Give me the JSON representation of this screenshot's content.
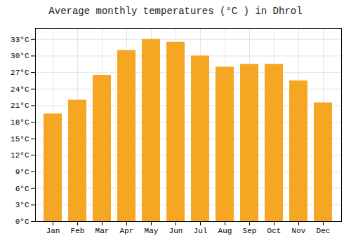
{
  "chart_data": {
    "type": "bar",
    "title": "Average monthly temperatures (°C ) in Dhrol",
    "categories": [
      "Jan",
      "Feb",
      "Mar",
      "Apr",
      "May",
      "Jun",
      "Jul",
      "Aug",
      "Sep",
      "Oct",
      "Nov",
      "Dec"
    ],
    "values": [
      19.5,
      22.0,
      26.5,
      31.0,
      33.0,
      32.5,
      30.0,
      28.0,
      28.5,
      28.5,
      25.5,
      21.5
    ],
    "color": "#F5A623",
    "ylim": [
      0,
      35
    ],
    "yticks": [
      {
        "value": 0,
        "label": "0°C"
      },
      {
        "value": 3,
        "label": "3°C"
      },
      {
        "value": 6,
        "label": "6°C"
      },
      {
        "value": 9,
        "label": "9°C"
      },
      {
        "value": 12,
        "label": "12°C"
      },
      {
        "value": 15,
        "label": "15°C"
      },
      {
        "value": 18,
        "label": "18°C"
      },
      {
        "value": 21,
        "label": "21°C"
      },
      {
        "value": 24,
        "label": "24°C"
      },
      {
        "value": 27,
        "label": "27°C"
      },
      {
        "value": 30,
        "label": "30°C"
      },
      {
        "value": 33,
        "label": "33°C"
      }
    ],
    "grid": true
  }
}
